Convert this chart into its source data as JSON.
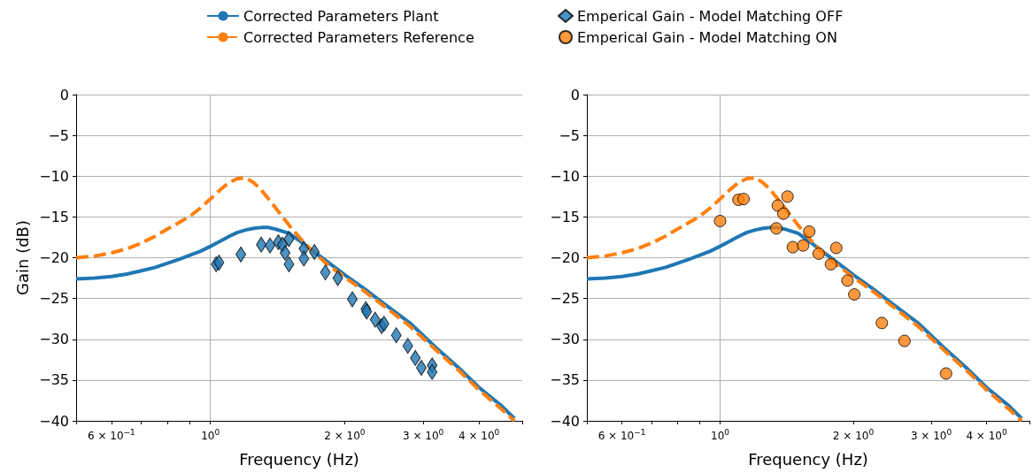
{
  "chart_data": [
    {
      "type": "line",
      "xlabel": "Frequency (Hz)",
      "ylabel": "Gain (dB)",
      "log": "x",
      "legend": "top",
      "grid": "y",
      "xlim": [
        0.5,
        5
      ],
      "xticks": [
        {
          "value": 0.5,
          "label": null
        },
        {
          "value": 0.6,
          "label": "6 × 10$^{−1}$"
        },
        {
          "value": 0.7,
          "label": null
        },
        {
          "value": 0.8,
          "label": null
        },
        {
          "value": 0.9,
          "label": null
        },
        {
          "value": 1,
          "label": "10$^{0}$"
        },
        {
          "value": 2,
          "label": "2 × 10$^{0}$"
        },
        {
          "value": 3,
          "label": "3 × 10$^{0}$"
        },
        {
          "value": 4,
          "label": "4 × 10$^{0}$"
        },
        {
          "value": 5,
          "label": null
        }
      ],
      "ylim": [
        -40,
        0
      ],
      "yticks": [
        -40,
        -35,
        -30,
        -25,
        -20,
        -15,
        -10,
        -5,
        0
      ],
      "ref_lines": [
        {
          "axis": "x",
          "value": 1,
          "label": null,
          "color": "#b0b0b0"
        }
      ],
      "series": [
        {
          "name": "Corrected Parameters Plant",
          "color": "#1f77b4",
          "line_style": "solid",
          "marker": "none",
          "x": [
            0.5,
            0.55,
            0.6,
            0.65,
            0.7,
            0.75,
            0.8,
            0.85,
            0.9,
            0.95,
            1,
            1.05,
            1.1,
            1.15,
            1.2,
            1.25,
            1.3,
            1.35,
            1.4,
            1.5,
            1.6,
            1.7,
            1.8,
            2,
            2.2,
            2.5,
            2.8,
            3.2,
            3.6,
            4,
            4.5,
            4.8
          ],
          "values": [
            -22.6,
            -22.5,
            -22.3,
            -22,
            -21.6,
            -21.2,
            -20.7,
            -20.2,
            -19.7,
            -19.2,
            -18.6,
            -18,
            -17.4,
            -16.9,
            -16.6,
            -16.4,
            -16.3,
            -16.3,
            -16.5,
            -17,
            -18.1,
            -19.2,
            -20.2,
            -22.1,
            -23.7,
            -26,
            -28,
            -31,
            -33.5,
            -35.9,
            -38.2,
            -39.7
          ]
        },
        {
          "name": "Corrected Parameters Reference",
          "color": "#ff7f0e",
          "line_style": "dashed",
          "marker": "none",
          "x": [
            0.5,
            0.55,
            0.6,
            0.65,
            0.7,
            0.75,
            0.8,
            0.85,
            0.9,
            0.95,
            1,
            1.05,
            1.1,
            1.15,
            1.2,
            1.25,
            1.3,
            1.35,
            1.4,
            1.5,
            1.6,
            1.7,
            1.8,
            2,
            2.2,
            2.5,
            2.8,
            3.2,
            3.6,
            4,
            4.5,
            4.8
          ],
          "values": [
            -20,
            -19.8,
            -19.4,
            -18.9,
            -18.2,
            -17.4,
            -16.5,
            -15.7,
            -14.9,
            -13.9,
            -12.8,
            -11.7,
            -10.8,
            -10.3,
            -10.2,
            -10.8,
            -11.7,
            -12.8,
            -13.9,
            -16,
            -17.8,
            -19.3,
            -20.5,
            -22.4,
            -24,
            -26.3,
            -28.4,
            -31.3,
            -33.8,
            -36.2,
            -38.6,
            -40
          ]
        },
        {
          "name": "Emperical Gain - Model Matching OFF",
          "type": "scatter",
          "color": "#1f77b4",
          "marker": "diamond",
          "x": [
            1.03,
            1.045,
            1.17,
            1.3,
            1.36,
            1.42,
            1.45,
            1.5,
            1.47,
            1.5,
            1.62,
            1.62,
            1.71,
            1.81,
            1.93,
            2.08,
            2.23,
            2.24,
            2.34,
            2.42,
            2.45,
            2.61,
            2.77,
            2.88,
            2.97,
            3.14,
            3.14
          ],
          "values": [
            -20.8,
            -20.6,
            -19.6,
            -18.4,
            -18.5,
            -18.1,
            -18.4,
            -17.7,
            -19.4,
            -20.8,
            -18.9,
            -20.1,
            -19.3,
            -21.8,
            -22.5,
            -25.1,
            -26.3,
            -26.6,
            -27.6,
            -28.4,
            -28.1,
            -29.5,
            -30.8,
            -32.3,
            -33.5,
            -33.2,
            -34
          ]
        }
      ]
    },
    {
      "type": "line",
      "xlabel": "Frequency (Hz)",
      "log": "x",
      "legend": "top",
      "grid": "y",
      "xlim": [
        0.5,
        5
      ],
      "xticks": [
        {
          "value": 0.5,
          "label": null
        },
        {
          "value": 0.6,
          "label": "6 × 10$^{−1}$"
        },
        {
          "value": 0.7,
          "label": null
        },
        {
          "value": 0.8,
          "label": null
        },
        {
          "value": 0.9,
          "label": null
        },
        {
          "value": 1,
          "label": "10$^{0}$"
        },
        {
          "value": 2,
          "label": "2 × 10$^{0}$"
        },
        {
          "value": 3,
          "label": "3 × 10$^{0}$"
        },
        {
          "value": 4,
          "label": "4 × 10$^{0}$"
        },
        {
          "value": 5,
          "label": null
        }
      ],
      "ylim": [
        -40,
        0
      ],
      "yticks": [
        -40,
        -35,
        -30,
        -25,
        -20,
        -15,
        -10,
        -5,
        0
      ],
      "ref_lines": [
        {
          "axis": "x",
          "value": 1,
          "label": null,
          "color": "#b0b0b0"
        }
      ],
      "series": [
        {
          "color": "#1f77b4",
          "line_style": "solid",
          "marker": "none",
          "x": [
            0.5,
            0.55,
            0.6,
            0.65,
            0.7,
            0.75,
            0.8,
            0.85,
            0.9,
            0.95,
            1,
            1.05,
            1.1,
            1.15,
            1.2,
            1.25,
            1.3,
            1.35,
            1.4,
            1.5,
            1.6,
            1.7,
            1.8,
            2,
            2.2,
            2.5,
            2.8,
            3.2,
            3.6,
            4,
            4.5,
            4.8
          ],
          "values": [
            -22.6,
            -22.5,
            -22.3,
            -22,
            -21.6,
            -21.2,
            -20.7,
            -20.2,
            -19.7,
            -19.2,
            -18.6,
            -18,
            -17.4,
            -16.9,
            -16.6,
            -16.4,
            -16.3,
            -16.3,
            -16.5,
            -17,
            -18.1,
            -19.2,
            -20.2,
            -22.1,
            -23.7,
            -26,
            -28,
            -31,
            -33.5,
            -35.9,
            -38.2,
            -39.7
          ]
        },
        {
          "color": "#ff7f0e",
          "line_style": "dashed",
          "marker": "none",
          "x": [
            0.5,
            0.55,
            0.6,
            0.65,
            0.7,
            0.75,
            0.8,
            0.85,
            0.9,
            0.95,
            1,
            1.05,
            1.1,
            1.15,
            1.2,
            1.25,
            1.3,
            1.35,
            1.4,
            1.5,
            1.6,
            1.7,
            1.8,
            2,
            2.2,
            2.5,
            2.8,
            3.2,
            3.6,
            4,
            4.5,
            4.8
          ],
          "values": [
            -20,
            -19.8,
            -19.4,
            -18.9,
            -18.2,
            -17.4,
            -16.5,
            -15.7,
            -14.9,
            -13.9,
            -12.8,
            -11.7,
            -10.8,
            -10.3,
            -10.2,
            -10.8,
            -11.7,
            -12.8,
            -13.9,
            -16,
            -17.8,
            -19.3,
            -20.5,
            -22.4,
            -24,
            -26.3,
            -28.4,
            -31.3,
            -33.8,
            -36.2,
            -38.6,
            -40
          ]
        },
        {
          "name": "Emperical Gain - Model Matching ON",
          "type": "scatter",
          "color": "#ff7f0e",
          "marker": "circle",
          "x": [
            1,
            1.1,
            1.13,
            1.42,
            1.35,
            1.39,
            1.34,
            1.59,
            1.46,
            1.54,
            1.83,
            1.67,
            1.78,
            1.94,
            2.01,
            2.32,
            2.61,
            3.24
          ],
          "values": [
            -15.5,
            -12.9,
            -12.8,
            -12.5,
            -13.6,
            -14.6,
            -16.4,
            -16.8,
            -18.7,
            -18.5,
            -18.8,
            -19.5,
            -20.8,
            -22.8,
            -24.5,
            -28,
            -30.2,
            -34.2
          ]
        }
      ]
    }
  ]
}
